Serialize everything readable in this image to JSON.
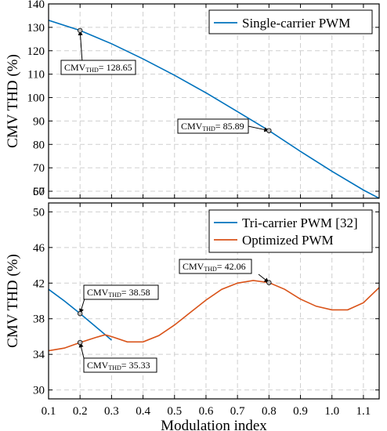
{
  "chart_data": [
    {
      "type": "line",
      "ylabel": "CMV THD (%)",
      "xlabel": "",
      "xlim": [
        0.1,
        1.15
      ],
      "ylim": [
        57,
        140
      ],
      "xticks": [],
      "yticks": [
        60,
        70,
        80,
        90,
        100,
        110,
        120,
        130,
        140
      ],
      "ytick_labels": [
        "60",
        "70",
        "80",
        "90",
        "100",
        "110",
        "120",
        "130",
        "140"
      ],
      "extra_ytick_labels": [
        "57"
      ],
      "grid": true,
      "legend_position": "top-right",
      "series": [
        {
          "name": "Single-carrier PWM",
          "color": "#0072bd",
          "x": [
            0.1,
            0.2,
            0.3,
            0.4,
            0.5,
            0.6,
            0.7,
            0.8,
            0.9,
            1.0,
            1.1,
            1.15
          ],
          "y": [
            133,
            128.65,
            123.0,
            116.5,
            109.5,
            102.0,
            94.0,
            85.89,
            77.0,
            68.5,
            60.5,
            57.0
          ]
        }
      ],
      "annotations": [
        {
          "main": "CMV",
          "sub": "THD",
          "value": "= 128.65",
          "x": 0.2,
          "y": 128.65
        },
        {
          "main": "CMV",
          "sub": "THD",
          "value": "= 85.89",
          "x": 0.8,
          "y": 85.89
        }
      ]
    },
    {
      "type": "line",
      "ylabel": "CMV THD (%)",
      "xlabel": "Modulation index",
      "xlim": [
        0.1,
        1.15
      ],
      "ylim": [
        29,
        51
      ],
      "xticks": [
        0.1,
        0.2,
        0.3,
        0.4,
        0.5,
        0.6,
        0.7,
        0.8,
        0.9,
        1.0,
        1.1
      ],
      "xtick_labels": [
        "0.1",
        "0.2",
        "0.3",
        "0.4",
        "0.5",
        "0.6",
        "0.7",
        "0.8",
        "0.9",
        "1.0",
        "1.1"
      ],
      "yticks": [
        30,
        34,
        38,
        42,
        46,
        50
      ],
      "ytick_labels": [
        "30",
        "34",
        "38",
        "42",
        "46",
        "50"
      ],
      "grid": true,
      "legend_position": "top-right",
      "series": [
        {
          "name": "Tri-carrier PWM [32]",
          "color": "#0072bd",
          "x": [
            0.1,
            0.15,
            0.2,
            0.25,
            0.3
          ],
          "y": [
            41.3,
            40.0,
            38.58,
            37.1,
            35.6
          ]
        },
        {
          "name": "Optimized PWM",
          "color": "#d95319",
          "x": [
            0.1,
            0.15,
            0.2,
            0.25,
            0.28,
            0.3,
            0.35,
            0.4,
            0.45,
            0.5,
            0.55,
            0.6,
            0.65,
            0.7,
            0.75,
            0.8,
            0.85,
            0.9,
            0.95,
            1.0,
            1.05,
            1.1,
            1.15
          ],
          "y": [
            34.4,
            34.7,
            35.33,
            35.9,
            36.2,
            36.0,
            35.4,
            35.4,
            36.1,
            37.3,
            38.7,
            40.1,
            41.3,
            42.0,
            42.3,
            42.06,
            41.3,
            40.2,
            39.4,
            39.0,
            39.0,
            39.8,
            41.5
          ]
        }
      ],
      "annotations": [
        {
          "main": "CMV",
          "sub": "THD",
          "value": "= 42.06",
          "x": 0.8,
          "y": 42.06
        },
        {
          "main": "CMV",
          "sub": "THD",
          "value": "= 38.58",
          "x": 0.2,
          "y": 38.58
        },
        {
          "main": "CMV",
          "sub": "THD",
          "value": "= 35.33",
          "x": 0.2,
          "y": 35.33
        }
      ]
    }
  ]
}
